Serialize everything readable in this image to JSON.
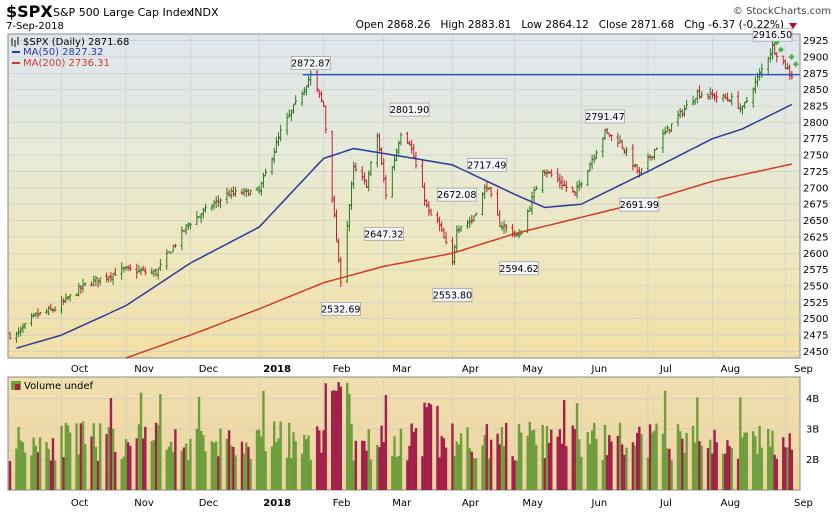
{
  "header": {
    "ticker": "$SPX",
    "name": "S&P 500 Large Cap Index",
    "exchange": "INDX",
    "date": "7-Sep-2018",
    "ohlc": "Open 2868.26   High 2883.81   Low 2864.12   Close 2871.68   Chg -6.37 (-0.22%)",
    "credit": "© StockCharts.com",
    "change_icon": "down-triangle-icon",
    "change_color": "#c0003c"
  },
  "legend": {
    "price_label": "$SPX (Daily) 2871.68",
    "ma50_label": "MA(50) 2827.32",
    "ma200_label": "MA(200) 2736.31"
  },
  "volume_label": "Volume undef",
  "x_labels": [
    "Oct",
    "Nov",
    "Dec",
    "2018",
    "Feb",
    "Mar",
    "Apr",
    "May",
    "Jun",
    "Jul",
    "Aug",
    "Sep"
  ],
  "colors": {
    "up": "#2a7a1e",
    "down": "#c0202a",
    "ma50": "#2b3a9c",
    "ma200": "#d23a2a",
    "resistance": "#2b54c6",
    "vol_up": "#6f9e3c",
    "vol_down": "#a3204a"
  },
  "chart_data": [
    {
      "type": "line",
      "title": "$SPX (Daily)",
      "y_ticks": [
        2450,
        2475,
        2500,
        2525,
        2550,
        2575,
        2600,
        2625,
        2650,
        2675,
        2700,
        2725,
        2750,
        2775,
        2800,
        2825,
        2850,
        2875,
        2900,
        2925
      ],
      "ylim": [
        2440,
        2935
      ],
      "x_categories": [
        "Oct",
        "Nov",
        "Dec",
        "2018",
        "Feb",
        "Mar",
        "Apr",
        "May",
        "Jun",
        "Jul",
        "Aug",
        "Sep"
      ],
      "series": [
        {
          "name": "$SPX (Daily)",
          "last": 2871.68,
          "anchors": [
            [
              "2017-09-11",
              2475
            ],
            [
              "2017-09-20",
              2505
            ],
            [
              "2017-09-29",
              2515
            ],
            [
              "2017-10-13",
              2552
            ],
            [
              "2017-10-31",
              2575
            ],
            [
              "2017-11-15",
              2570
            ],
            [
              "2017-11-30",
              2645
            ],
            [
              "2017-12-18",
              2690
            ],
            [
              "2018-01-02",
              2695
            ],
            [
              "2018-01-12",
              2785
            ],
            [
              "2018-01-26",
              2872
            ],
            [
              "2018-02-01",
              2825
            ],
            [
              "2018-02-08",
              2585
            ],
            [
              "2018-02-09",
              2560
            ],
            [
              "2018-02-15",
              2730
            ],
            [
              "2018-02-21",
              2705
            ],
            [
              "2018-02-26",
              2780
            ],
            [
              "2018-03-02",
              2690
            ],
            [
              "2018-03-09",
              2785
            ],
            [
              "2018-03-13",
              2770
            ],
            [
              "2018-03-22",
              2660
            ],
            [
              "2018-03-26",
              2650
            ],
            [
              "2018-04-02",
              2585
            ],
            [
              "2018-04-04",
              2640
            ],
            [
              "2018-04-11",
              2650
            ],
            [
              "2018-04-18",
              2705
            ],
            [
              "2018-04-24",
              2645
            ],
            [
              "2018-05-03",
              2625
            ],
            [
              "2018-05-14",
              2730
            ],
            [
              "2018-05-29",
              2690
            ],
            [
              "2018-06-12",
              2785
            ],
            [
              "2018-06-19",
              2770
            ],
            [
              "2018-06-28",
              2720
            ],
            [
              "2018-07-09",
              2780
            ],
            [
              "2018-07-25",
              2845
            ],
            [
              "2018-08-10",
              2835
            ],
            [
              "2018-08-15",
              2820
            ],
            [
              "2018-08-29",
              2915
            ],
            [
              "2018-09-07",
              2871.68
            ]
          ]
        },
        {
          "name": "MA(50)",
          "last": 2827.32,
          "anchors": [
            [
              "2017-09-11",
              2455
            ],
            [
              "2017-10-02",
              2475
            ],
            [
              "2017-11-01",
              2520
            ],
            [
              "2017-12-01",
              2585
            ],
            [
              "2018-01-02",
              2640
            ],
            [
              "2018-02-01",
              2745
            ],
            [
              "2018-02-15",
              2760
            ],
            [
              "2018-03-15",
              2745
            ],
            [
              "2018-04-02",
              2735
            ],
            [
              "2018-05-01",
              2690
            ],
            [
              "2018-05-15",
              2670
            ],
            [
              "2018-06-01",
              2675
            ],
            [
              "2018-07-02",
              2725
            ],
            [
              "2018-08-01",
              2775
            ],
            [
              "2018-08-15",
              2790
            ],
            [
              "2018-09-07",
              2827.32
            ]
          ]
        },
        {
          "name": "MA(200)",
          "last": 2736.31,
          "anchors": [
            [
              "2017-11-01",
              2440
            ],
            [
              "2017-12-01",
              2475
            ],
            [
              "2018-01-02",
              2515
            ],
            [
              "2018-02-01",
              2555
            ],
            [
              "2018-03-01",
              2580
            ],
            [
              "2018-04-02",
              2600
            ],
            [
              "2018-05-01",
              2630
            ],
            [
              "2018-06-01",
              2655
            ],
            [
              "2018-07-02",
              2680
            ],
            [
              "2018-08-01",
              2710
            ],
            [
              "2018-09-07",
              2736.31
            ]
          ]
        }
      ],
      "resistance_level": 2872.87,
      "annotations": [
        {
          "label": "2872.87",
          "date": "2018-01-26",
          "value": 2872.87,
          "pos": "above"
        },
        {
          "label": "2532.69",
          "date": "2018-02-09",
          "value": 2532.69,
          "pos": "below"
        },
        {
          "label": "2801.90",
          "date": "2018-03-13",
          "value": 2801.9,
          "pos": "above"
        },
        {
          "label": "2647.32",
          "date": "2018-03-01",
          "value": 2647.32,
          "pos": "below"
        },
        {
          "label": "2672.08",
          "date": "2018-04-04",
          "value": 2672.08,
          "pos": "above"
        },
        {
          "label": "2717.49",
          "date": "2018-04-18",
          "value": 2717.49,
          "pos": "above"
        },
        {
          "label": "2553.80",
          "date": "2018-04-02",
          "value": 2553.8,
          "pos": "below"
        },
        {
          "label": "2594.62",
          "date": "2018-05-03",
          "value": 2594.62,
          "pos": "below"
        },
        {
          "label": "2791.47",
          "date": "2018-06-12",
          "value": 2791.47,
          "pos": "above"
        },
        {
          "label": "2691.99",
          "date": "2018-06-28",
          "value": 2691.99,
          "pos": "below"
        },
        {
          "label": "2916.50",
          "date": "2018-08-29",
          "value": 2916.5,
          "pos": "above"
        }
      ]
    },
    {
      "type": "bar",
      "title": "Volume",
      "y_ticks": [
        "2B",
        "3B",
        "4B"
      ],
      "ylim": [
        1,
        4.7
      ]
    }
  ]
}
